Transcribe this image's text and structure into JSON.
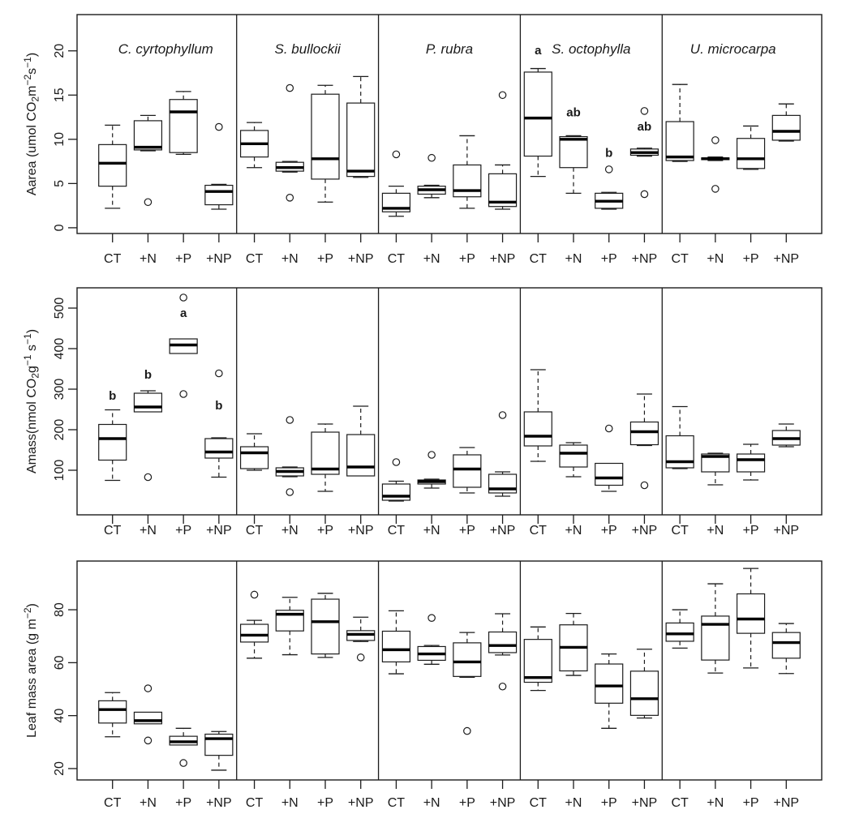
{
  "treatments": [
    "CT",
    "+N",
    "+P",
    "+NP"
  ],
  "species": [
    "C. cyrtophyllum",
    "S. bullockii",
    "P. rubra",
    "S. octophylla",
    "U. microcarpa"
  ],
  "box_format": [
    "low_whisker",
    "q1",
    "median",
    "q3",
    "high_whisker"
  ],
  "chart_data": [
    {
      "type": "boxplot",
      "id": "aarea",
      "ylabel_text": "Aarea (umol CO2 m-2 s-1)",
      "ylabel_segments": [
        {
          "t": "Aarea (umol CO"
        },
        {
          "t": "2",
          "m": "sub"
        },
        {
          "t": "m"
        },
        {
          "t": "−2",
          "m": "sup"
        },
        {
          "t": "s"
        },
        {
          "t": "−1",
          "m": "sup"
        },
        {
          "t": ")"
        }
      ],
      "ylim": [
        -0.65,
        24.1
      ],
      "yticks": [
        0,
        5,
        10,
        15,
        20
      ],
      "show_species_titles": true,
      "groups": [
        {
          "species": "C. cyrtophyllum",
          "boxes": [
            {
              "treatment": "CT",
              "values": [
                2.2,
                4.7,
                7.3,
                9.4,
                11.6
              ],
              "outliers": []
            },
            {
              "treatment": "+N",
              "values": [
                8.7,
                8.8,
                9.1,
                12.1,
                12.7
              ],
              "outliers": [
                2.9
              ]
            },
            {
              "treatment": "+P",
              "values": [
                8.3,
                8.5,
                13.1,
                14.5,
                15.4
              ],
              "outliers": []
            },
            {
              "treatment": "+NP",
              "values": [
                2.1,
                2.6,
                4.1,
                4.8,
                4.9
              ],
              "outliers": [
                11.4
              ]
            }
          ]
        },
        {
          "species": "S. bullockii",
          "boxes": [
            {
              "treatment": "CT",
              "values": [
                6.8,
                8.0,
                9.5,
                11.0,
                11.9
              ],
              "outliers": []
            },
            {
              "treatment": "+N",
              "values": [
                6.3,
                6.4,
                6.8,
                7.4,
                7.5
              ],
              "outliers": [
                15.8,
                3.4
              ]
            },
            {
              "treatment": "+P",
              "values": [
                2.9,
                5.5,
                7.8,
                15.1,
                16.1
              ],
              "outliers": []
            },
            {
              "treatment": "+NP",
              "values": [
                5.7,
                5.8,
                6.4,
                14.1,
                17.1
              ],
              "outliers": []
            }
          ]
        },
        {
          "species": "P. rubra",
          "boxes": [
            {
              "treatment": "CT",
              "values": [
                1.3,
                1.8,
                2.2,
                3.9,
                4.7
              ],
              "outliers": [
                8.3
              ]
            },
            {
              "treatment": "+N",
              "values": [
                3.4,
                3.8,
                4.3,
                4.7,
                4.8
              ],
              "outliers": [
                7.9
              ]
            },
            {
              "treatment": "+P",
              "values": [
                2.2,
                3.5,
                4.2,
                7.1,
                10.4
              ],
              "outliers": []
            },
            {
              "treatment": "+NP",
              "values": [
                2.1,
                2.4,
                2.9,
                6.1,
                7.1
              ],
              "outliers": [
                15.0
              ]
            }
          ]
        },
        {
          "species": "S. octophylla",
          "boxes": [
            {
              "treatment": "CT",
              "values": [
                5.8,
                8.1,
                12.4,
                17.6,
                18.0
              ],
              "outliers": [],
              "letter": "a",
              "letter_y": 19.6
            },
            {
              "treatment": "+N",
              "values": [
                3.9,
                6.8,
                10.0,
                10.3,
                10.4
              ],
              "outliers": [],
              "letter": "ab",
              "letter_y": 12.6
            },
            {
              "treatment": "+P",
              "values": [
                2.1,
                2.2,
                3.0,
                3.9,
                4.0
              ],
              "outliers": [
                6.6
              ],
              "letter": "b",
              "letter_y": 8.0
            },
            {
              "treatment": "+NP",
              "values": [
                8.1,
                8.2,
                8.5,
                8.9,
                9.0
              ],
              "outliers": [
                13.2,
                3.8
              ],
              "letter": "ab",
              "letter_y": 11.0
            }
          ]
        },
        {
          "species": "U. microcarpa",
          "boxes": [
            {
              "treatment": "CT",
              "values": [
                7.5,
                7.6,
                8.0,
                12.0,
                16.2
              ],
              "outliers": []
            },
            {
              "treatment": "+N",
              "values": [
                7.6,
                7.7,
                7.8,
                7.9,
                8.0
              ],
              "outliers": [
                9.9,
                4.4
              ]
            },
            {
              "treatment": "+P",
              "values": [
                6.6,
                6.7,
                7.8,
                10.1,
                11.5
              ],
              "outliers": []
            },
            {
              "treatment": "+NP",
              "values": [
                9.8,
                9.9,
                10.9,
                12.7,
                14.0
              ],
              "outliers": []
            }
          ]
        }
      ]
    },
    {
      "type": "boxplot",
      "id": "amass",
      "ylabel_text": "Amass(nmol CO2 g-1 s-1)",
      "ylabel_segments": [
        {
          "t": "Amass(nmol CO"
        },
        {
          "t": "2",
          "m": "sub"
        },
        {
          "t": "g"
        },
        {
          "t": "−1",
          "m": "sup"
        },
        {
          "t": " s"
        },
        {
          "t": "−1",
          "m": "sup"
        },
        {
          "t": ")"
        }
      ],
      "ylim": [
        -10,
        550
      ],
      "yticks": [
        100,
        200,
        300,
        400,
        500
      ],
      "show_species_titles": false,
      "groups": [
        {
          "species": "C. cyrtophyllum",
          "boxes": [
            {
              "treatment": "CT",
              "values": [
                75,
                125,
                178,
                213,
                249
              ],
              "outliers": [],
              "letter": "b",
              "letter_y": 274
            },
            {
              "treatment": "+N",
              "values": [
                243,
                244,
                256,
                290,
                296
              ],
              "outliers": [
                83
              ],
              "letter": "b",
              "letter_y": 326
            },
            {
              "treatment": "+P",
              "values": [
                388,
                388,
                409,
                424,
                424
              ],
              "outliers": [
                526,
                288
              ],
              "letter": "a",
              "letter_y": 478
            },
            {
              "treatment": "+NP",
              "values": [
                83,
                130,
                145,
                178,
                180
              ],
              "outliers": [
                339
              ],
              "letter": "b",
              "letter_y": 250
            }
          ]
        },
        {
          "species": "S. bullockii",
          "boxes": [
            {
              "treatment": "CT",
              "values": [
                100,
                104,
                143,
                158,
                190
              ],
              "outliers": []
            },
            {
              "treatment": "+N",
              "values": [
                84,
                86,
                97,
                106,
                108
              ],
              "outliers": [
                224,
                46
              ]
            },
            {
              "treatment": "+P",
              "values": [
                48,
                90,
                103,
                194,
                214
              ],
              "outliers": []
            },
            {
              "treatment": "+NP",
              "values": [
                85,
                86,
                108,
                188,
                258
              ],
              "outliers": []
            }
          ]
        },
        {
          "species": "P. rubra",
          "boxes": [
            {
              "treatment": "CT",
              "values": [
                24,
                26,
                36,
                66,
                73
              ],
              "outliers": [
                120
              ]
            },
            {
              "treatment": "+N",
              "values": [
                56,
                66,
                72,
                76,
                78
              ],
              "outliers": [
                138
              ]
            },
            {
              "treatment": "+P",
              "values": [
                44,
                58,
                103,
                138,
                156
              ],
              "outliers": []
            },
            {
              "treatment": "+NP",
              "values": [
                36,
                44,
                54,
                90,
                96
              ],
              "outliers": [
                236
              ]
            }
          ]
        },
        {
          "species": "S. octophylla",
          "boxes": [
            {
              "treatment": "CT",
              "values": [
                122,
                160,
                184,
                244,
                348
              ],
              "outliers": []
            },
            {
              "treatment": "+N",
              "values": [
                84,
                108,
                142,
                162,
                168
              ],
              "outliers": []
            },
            {
              "treatment": "+P",
              "values": [
                48,
                63,
                81,
                117,
                118
              ],
              "outliers": [
                203
              ]
            },
            {
              "treatment": "+NP",
              "values": [
                161,
                163,
                195,
                219,
                288
              ],
              "outliers": [
                63
              ]
            }
          ]
        },
        {
          "species": "U. microcarpa",
          "boxes": [
            {
              "treatment": "CT",
              "values": [
                104,
                106,
                121,
                185,
                257
              ],
              "outliers": []
            },
            {
              "treatment": "+N",
              "values": [
                64,
                96,
                134,
                140,
                142
              ],
              "outliers": []
            },
            {
              "treatment": "+P",
              "values": [
                76,
                96,
                126,
                140,
                164
              ],
              "outliers": []
            },
            {
              "treatment": "+NP",
              "values": [
                158,
                162,
                178,
                198,
                214
              ],
              "outliers": []
            }
          ]
        }
      ]
    },
    {
      "type": "boxplot",
      "id": "lma",
      "ylabel_text": "Leaf mass area (g m-2)",
      "ylabel_segments": [
        {
          "t": "Leaf mass area (g m"
        },
        {
          "t": "−2",
          "m": "sup"
        },
        {
          "t": ")"
        }
      ],
      "ylim": [
        15.7,
        98.4
      ],
      "yticks": [
        20,
        40,
        60,
        80
      ],
      "show_species_titles": false,
      "groups": [
        {
          "species": "C. cyrtophyllum",
          "boxes": [
            {
              "treatment": "CT",
              "values": [
                32.0,
                37.2,
                42.3,
                45.6,
                48.7
              ],
              "outliers": []
            },
            {
              "treatment": "+N",
              "values": [
                36.7,
                36.9,
                38.1,
                41.3,
                41.5
              ],
              "outliers": [
                50.3,
                30.6
              ]
            },
            {
              "treatment": "+P",
              "values": [
                28.7,
                28.9,
                30.1,
                32.2,
                35.2
              ],
              "outliers": [
                22.1
              ]
            },
            {
              "treatment": "+NP",
              "values": [
                19.4,
                25.0,
                31.3,
                33.0,
                34.0
              ],
              "outliers": []
            }
          ]
        },
        {
          "species": "S. bullockii",
          "boxes": [
            {
              "treatment": "CT",
              "values": [
                61.7,
                67.8,
                70.4,
                74.5,
                76.0
              ],
              "outliers": [
                85.7
              ]
            },
            {
              "treatment": "+N",
              "values": [
                63.0,
                72.0,
                78.3,
                79.8,
                84.7
              ],
              "outliers": []
            },
            {
              "treatment": "+P",
              "values": [
                62.0,
                63.3,
                75.5,
                84.0,
                86.2
              ],
              "outliers": []
            },
            {
              "treatment": "+NP",
              "values": [
                68.0,
                68.4,
                70.7,
                72.1,
                77.2
              ],
              "outliers": [
                62.0
              ]
            }
          ]
        },
        {
          "species": "P. rubra",
          "boxes": [
            {
              "treatment": "CT",
              "values": [
                55.8,
                60.3,
                64.9,
                71.9,
                79.6
              ],
              "outliers": []
            },
            {
              "treatment": "+N",
              "values": [
                59.4,
                60.9,
                63.3,
                66.1,
                66.5
              ],
              "outliers": [
                76.9
              ]
            },
            {
              "treatment": "+P",
              "values": [
                54.5,
                54.8,
                60.3,
                67.5,
                71.4
              ],
              "outliers": [
                34.2
              ]
            },
            {
              "treatment": "+NP",
              "values": [
                62.9,
                63.8,
                66.5,
                71.6,
                78.5
              ],
              "outliers": [
                51.0
              ]
            }
          ]
        },
        {
          "species": "S. octophylla",
          "boxes": [
            {
              "treatment": "CT",
              "values": [
                49.5,
                52.6,
                54.4,
                68.8,
                73.5
              ],
              "outliers": []
            },
            {
              "treatment": "+N",
              "values": [
                55.2,
                56.9,
                65.8,
                74.3,
                78.6
              ],
              "outliers": []
            },
            {
              "treatment": "+P",
              "values": [
                35.2,
                44.7,
                51.2,
                59.5,
                63.3
              ],
              "outliers": []
            },
            {
              "treatment": "+NP",
              "values": [
                39.1,
                40.1,
                46.4,
                56.8,
                65.1
              ],
              "outliers": []
            }
          ]
        },
        {
          "species": "U. microcarpa",
          "boxes": [
            {
              "treatment": "CT",
              "values": [
                65.5,
                68.1,
                70.9,
                75.0,
                80.0
              ],
              "outliers": []
            },
            {
              "treatment": "+N",
              "values": [
                56.1,
                61.0,
                74.5,
                77.6,
                89.8
              ],
              "outliers": []
            },
            {
              "treatment": "+P",
              "values": [
                58.0,
                71.1,
                76.5,
                86.0,
                95.6
              ],
              "outliers": []
            },
            {
              "treatment": "+NP",
              "values": [
                55.9,
                61.7,
                67.6,
                71.4,
                74.8
              ],
              "outliers": []
            }
          ]
        }
      ]
    }
  ]
}
